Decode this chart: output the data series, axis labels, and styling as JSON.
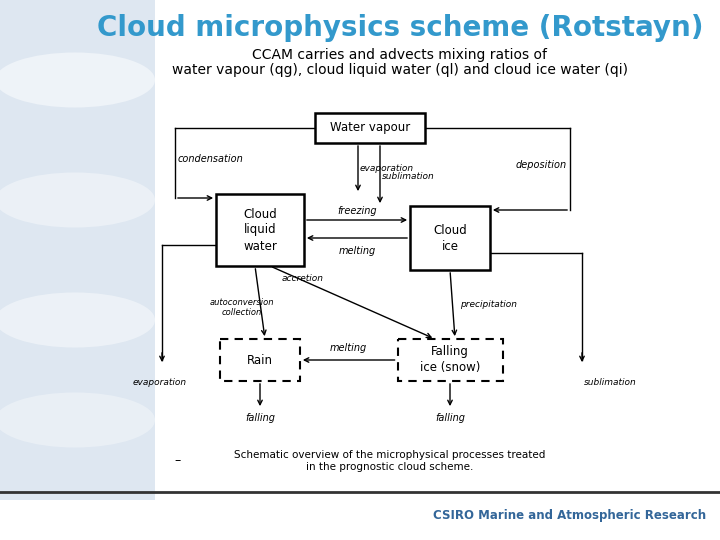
{
  "title": "Cloud microphysics scheme (Rotstayn)",
  "title_color": "#3399cc",
  "subtitle_line1": "CCAM carries and advects mixing ratios of",
  "subtitle_line2": "water vapour (qg), cloud liquid water (ql) and cloud ice water (qi)",
  "subtitle_color": "#000000",
  "footer_text": "CSIRO Marine and Atmospheric Research",
  "footer_color": "#336699",
  "caption_line1": "Schematic overview of the microphysical processes treated",
  "caption_line2": "in the prognostic cloud scheme.",
  "bg_color": "#ffffff"
}
